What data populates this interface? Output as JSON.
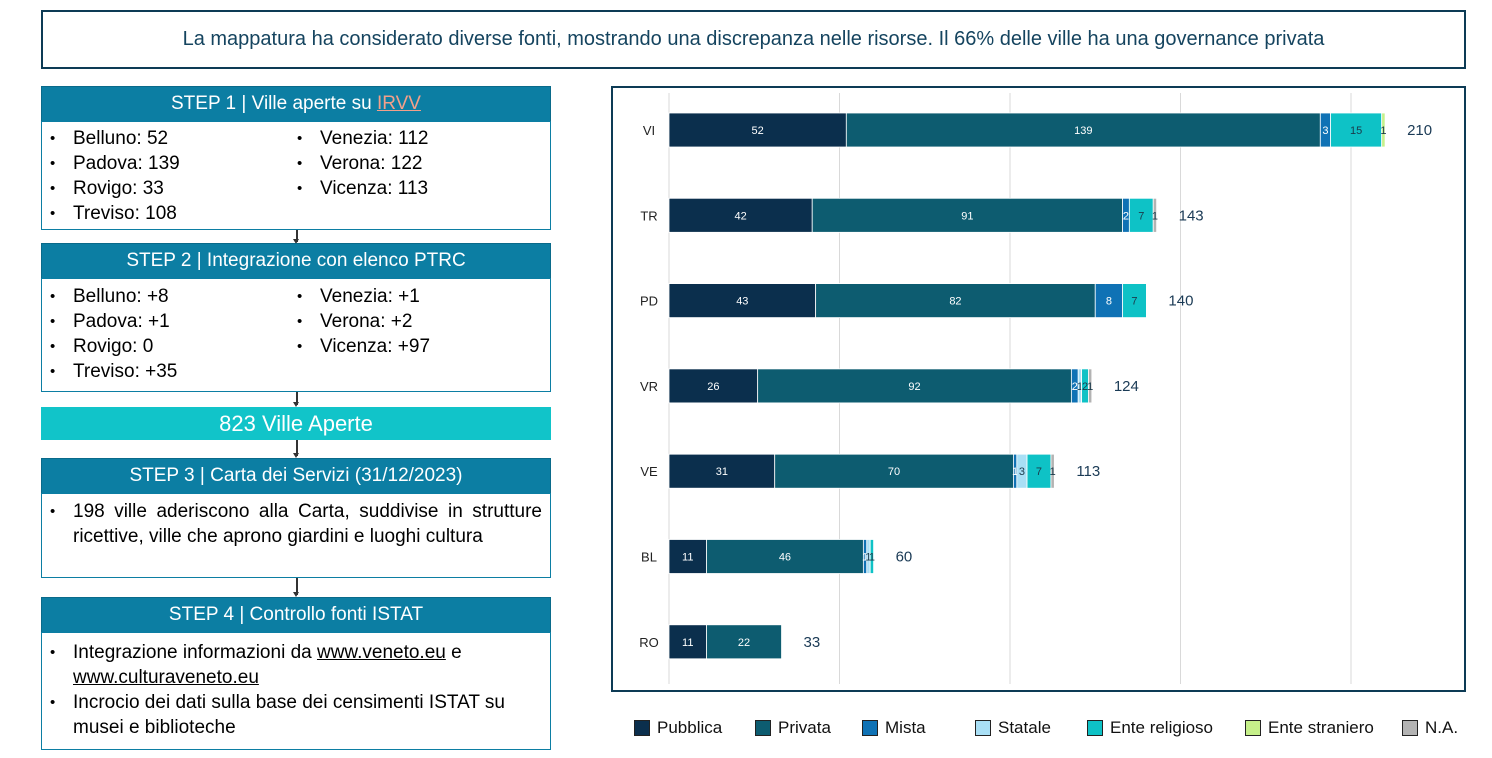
{
  "banner": {
    "text": "La mappatura ha considerato diverse fonti, mostrando una discrepanza nelle risorse. Il 66% delle ville ha una governance privata"
  },
  "steps": [
    {
      "title_prefix": "STEP 1 | Ville aperte su ",
      "title_link": "IRVV",
      "left": [
        "Belluno: 52",
        "Padova: 139",
        "Rovigo: 33",
        "Treviso: 108"
      ],
      "right": [
        "Venezia: 112",
        "Verona: 122",
        "Vicenza: 113"
      ]
    },
    {
      "title": "STEP 2 | Integrazione con elenco PTRC",
      "left": [
        "Belluno: +8",
        "Padova: +1",
        "Rovigo: 0",
        "Treviso: +35"
      ],
      "right": [
        "Venezia: +1",
        "Verona: +2",
        "Vicenza: +97"
      ]
    },
    {
      "title": "STEP 3 | Carta dei Servizi (31/12/2023)",
      "bullets": [
        "198 ville aderiscono alla Carta, suddivise in strutture ricettive, ville che aprono giardini e luoghi cultura"
      ]
    },
    {
      "title": "STEP 4 | Controllo fonti ISTAT",
      "bullet1_prefix": "Integrazione informazioni da ",
      "bullet1_link1": "www.veneto.eu",
      "bullet1_mid": " e",
      "bullet1_link2": "www.culturaveneto.eu",
      "bullet2": "Incrocio dei dati sulla base dei censimenti ISTAT su musei e biblioteche"
    }
  ],
  "total": {
    "text": "823 Ville Aperte"
  },
  "chart_data": {
    "type": "bar",
    "orientation": "horizontal",
    "stacked": true,
    "categories": [
      "VI",
      "TR",
      "PD",
      "VR",
      "VE",
      "BL",
      "RO"
    ],
    "series": [
      {
        "name": "Pubblica",
        "color": "#0b2f4d",
        "values": [
          52,
          42,
          43,
          26,
          31,
          11,
          11
        ]
      },
      {
        "name": "Privata",
        "color": "#0d5c70",
        "values": [
          139,
          91,
          82,
          92,
          70,
          46,
          22
        ]
      },
      {
        "name": "Mista",
        "color": "#0f72b5",
        "values": [
          3,
          2,
          8,
          2,
          1,
          1,
          0
        ]
      },
      {
        "name": "Statale",
        "color": "#a9dff5",
        "values": [
          0,
          0,
          0,
          1,
          3,
          1,
          0
        ]
      },
      {
        "name": "Ente religioso",
        "color": "#0ec2c6",
        "values": [
          15,
          7,
          7,
          2,
          7,
          1,
          0
        ]
      },
      {
        "name": "Ente straniero",
        "color": "#c6f08a",
        "values": [
          1,
          0,
          0,
          0,
          0,
          0,
          0
        ]
      },
      {
        "name": "N.A.",
        "color": "#b3b3b3",
        "values": [
          0,
          1,
          0,
          1,
          1,
          0,
          0
        ]
      }
    ],
    "totals": [
      210,
      143,
      140,
      124,
      113,
      60,
      33
    ],
    "xlim": [
      0,
      250
    ],
    "grid": true,
    "legend_position": "bottom"
  }
}
